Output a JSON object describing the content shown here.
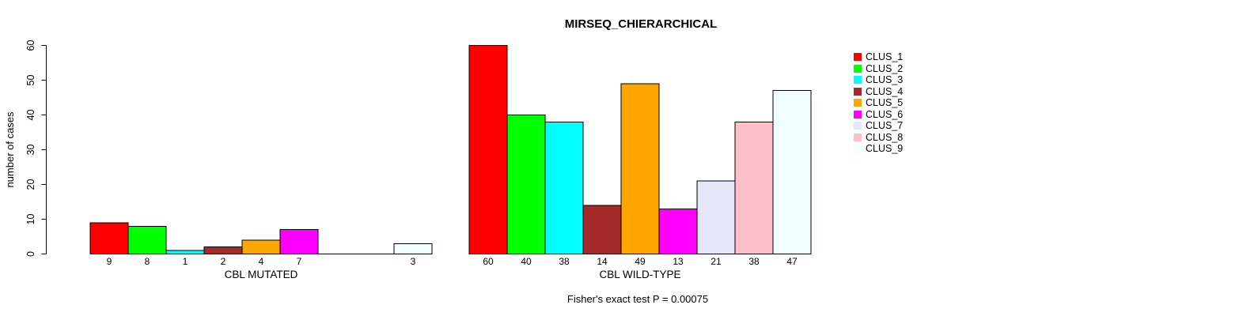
{
  "chart_data": {
    "type": "bar",
    "title": "MIRSEQ_CHIERARCHICAL",
    "ylabel": "number of cases",
    "xlabel": "",
    "ylim": [
      0,
      60
    ],
    "yticks": [
      0,
      10,
      20,
      30,
      40,
      50,
      60
    ],
    "grid": false,
    "legend_position": "right",
    "bar_value_labels_shown": true,
    "categories": [
      "CBL MUTATED",
      "CBL WILD-TYPE"
    ],
    "series": [
      {
        "name": "CLUS_1",
        "color": "#FF0000",
        "values": [
          9,
          60
        ]
      },
      {
        "name": "CLUS_2",
        "color": "#00FF00",
        "values": [
          8,
          40
        ]
      },
      {
        "name": "CLUS_3",
        "color": "#00FFFF",
        "values": [
          1,
          38
        ]
      },
      {
        "name": "CLUS_4",
        "color": "#A52A2A",
        "values": [
          2,
          14
        ]
      },
      {
        "name": "CLUS_5",
        "color": "#FFA500",
        "values": [
          4,
          49
        ]
      },
      {
        "name": "CLUS_6",
        "color": "#FF00FF",
        "values": [
          7,
          13
        ]
      },
      {
        "name": "CLUS_7",
        "color": "#E6E6FA",
        "values": [
          0,
          21
        ]
      },
      {
        "name": "CLUS_8",
        "color": "#FFC0CB",
        "values": [
          0,
          38
        ]
      },
      {
        "name": "CLUS_9",
        "color": "#F0FFFF",
        "values": [
          3,
          47
        ]
      }
    ],
    "annotation": "Fisher's exact test P = 0.00075",
    "bar_border_color": "#000000",
    "axis_color": "#000000"
  }
}
